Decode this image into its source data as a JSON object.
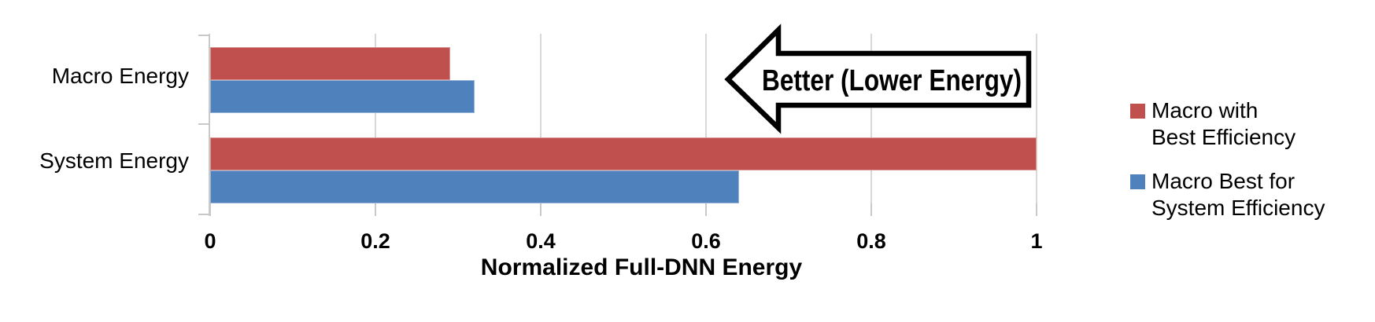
{
  "chart_data": {
    "type": "bar",
    "orientation": "horizontal",
    "title": "",
    "xlabel": "Normalized Full-DNN Energy",
    "categories": [
      "Macro Energy",
      "System Energy"
    ],
    "series": [
      {
        "name": "Macro with Best Efficiency",
        "color": "#C0504D",
        "border_color": "#D99694",
        "values": [
          0.29,
          1.0
        ]
      },
      {
        "name": "Macro Best for System Efficiency",
        "color": "#4F81BD",
        "border_color": "#95B3D7",
        "values": [
          0.32,
          0.64
        ]
      }
    ],
    "xlim": [
      0,
      1
    ],
    "x_ticks": [
      0,
      0.2,
      0.4,
      0.6,
      0.8,
      1
    ],
    "x_tick_labels": [
      "0",
      "0.2",
      "0.4",
      "0.6",
      "0.8",
      "1"
    ],
    "grid": "vertical-gridlines",
    "gridline_color": "#D8D8D8",
    "legend_position": "right-of-plot",
    "annotation": {
      "text": "Better (Lower Energy)",
      "shape": "left-block-arrow",
      "fill": "#FFFFFF",
      "stroke": "#000000"
    }
  },
  "legend": {
    "items": [
      {
        "line1": "Macro with",
        "line2": "Best Efficiency",
        "color": "#C0504D"
      },
      {
        "line1": "Macro Best for",
        "line2": "System Efficiency",
        "color": "#4F81BD"
      }
    ]
  }
}
